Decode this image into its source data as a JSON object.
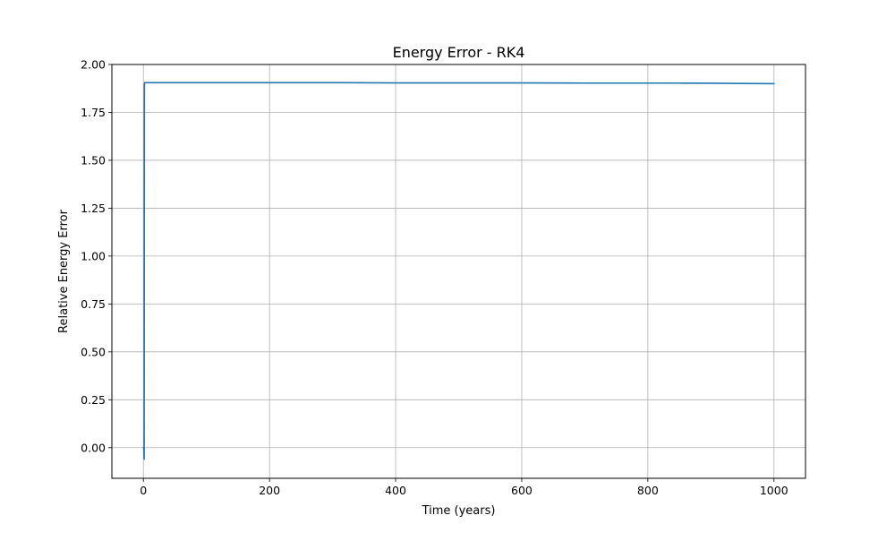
{
  "chart_data": {
    "type": "line",
    "title": "Energy Error - RK4",
    "xlabel": "Time (years)",
    "ylabel": "Relative Energy Error",
    "xlim": [
      -50,
      1050
    ],
    "ylim": [
      -0.16,
      2.0
    ],
    "xticks": [
      0,
      200,
      400,
      600,
      800,
      1000
    ],
    "xtick_labels": [
      "0",
      "200",
      "400",
      "600",
      "800",
      "1000"
    ],
    "yticks": [
      0.0,
      0.25,
      0.5,
      0.75,
      1.0,
      1.25,
      1.5,
      1.75,
      2.0
    ],
    "ytick_labels": [
      "0.00",
      "0.25",
      "0.50",
      "0.75",
      "1.00",
      "1.25",
      "1.50",
      "1.75",
      "2.00"
    ],
    "grid": true,
    "series": [
      {
        "color": "#1f77b4",
        "x": [
          0,
          0.8,
          1.2,
          1.6,
          2.0,
          100,
          200,
          300,
          400,
          500,
          600,
          700,
          800,
          850,
          900,
          950,
          1000
        ],
        "y": [
          0.0,
          0.0,
          -0.06,
          1.9,
          1.905,
          1.905,
          1.905,
          1.905,
          1.904,
          1.904,
          1.904,
          1.903,
          1.903,
          1.903,
          1.902,
          1.901,
          1.9
        ]
      }
    ]
  }
}
